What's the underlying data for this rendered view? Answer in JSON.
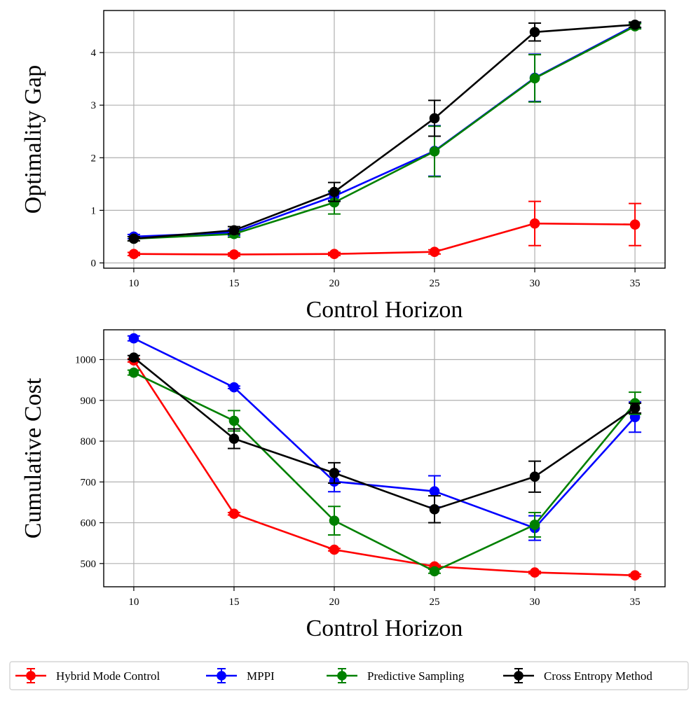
{
  "chart_data": [
    {
      "type": "line",
      "xlabel": "Control Horizon",
      "ylabel": "Optimality Gap",
      "x": [
        10,
        15,
        20,
        25,
        30,
        35
      ],
      "xlim": [
        8.5,
        36.5
      ],
      "ylim": [
        -0.1,
        4.8
      ],
      "xticks": [
        "10",
        "15",
        "20",
        "25",
        "30",
        "35"
      ],
      "yticks": [
        "0",
        "1",
        "2",
        "3",
        "4"
      ],
      "grid": true,
      "series": [
        {
          "name": "Hybrid Mode Control",
          "color": "#ff0000",
          "values": [
            0.17,
            0.16,
            0.17,
            0.21,
            0.75,
            0.73
          ],
          "errors": [
            0.03,
            0.03,
            0.03,
            0.04,
            0.42,
            0.4
          ]
        },
        {
          "name": "MPPI",
          "color": "#0000ff",
          "values": [
            0.5,
            0.58,
            1.27,
            2.13,
            3.52,
            4.52
          ],
          "errors": [
            0.04,
            0.06,
            0.08,
            0.48,
            0.45,
            0.05
          ]
        },
        {
          "name": "Predictive Sampling",
          "color": "#008000",
          "values": [
            0.46,
            0.55,
            1.15,
            2.12,
            3.51,
            4.5
          ],
          "errors": [
            0.04,
            0.06,
            0.22,
            0.48,
            0.45,
            0.05
          ]
        },
        {
          "name": "Cross Entropy Method",
          "color": "#000000",
          "values": [
            0.46,
            0.62,
            1.35,
            2.75,
            4.39,
            4.53
          ],
          "errors": [
            0.04,
            0.07,
            0.18,
            0.34,
            0.17,
            0.05
          ]
        }
      ]
    },
    {
      "type": "line",
      "xlabel": "Control Horizon",
      "ylabel": "Cumulative Cost",
      "x": [
        10,
        15,
        20,
        25,
        30,
        35
      ],
      "xlim": [
        8.5,
        36.5
      ],
      "ylim": [
        443,
        1073
      ],
      "xticks": [
        "10",
        "15",
        "20",
        "25",
        "30",
        "35"
      ],
      "yticks": [
        "500",
        "600",
        "700",
        "800",
        "900",
        "1000"
      ],
      "grid": true,
      "series": [
        {
          "name": "Hybrid Mode Control",
          "color": "#ff0000",
          "values": [
            998,
            622,
            534,
            493,
            478,
            471
          ],
          "errors": [
            4,
            3,
            3,
            3,
            3,
            3
          ]
        },
        {
          "name": "MPPI",
          "color": "#0000ff",
          "values": [
            1052,
            932,
            701,
            677,
            587,
            859
          ],
          "errors": [
            6,
            3,
            25,
            38,
            30,
            37
          ]
        },
        {
          "name": "Predictive Sampling",
          "color": "#008000",
          "values": [
            968,
            850,
            605,
            481,
            595,
            893
          ],
          "errors": [
            6,
            25,
            35,
            5,
            30,
            27
          ]
        },
        {
          "name": "Cross Entropy Method",
          "color": "#000000",
          "values": [
            1005,
            806,
            722,
            633,
            713,
            881
          ],
          "errors": [
            5,
            24,
            25,
            33,
            38,
            12
          ]
        }
      ]
    }
  ],
  "legend": {
    "placement": "bottom",
    "entries": [
      "Hybrid Mode Control",
      "MPPI",
      "Predictive Sampling",
      "Cross Entropy Method"
    ]
  }
}
